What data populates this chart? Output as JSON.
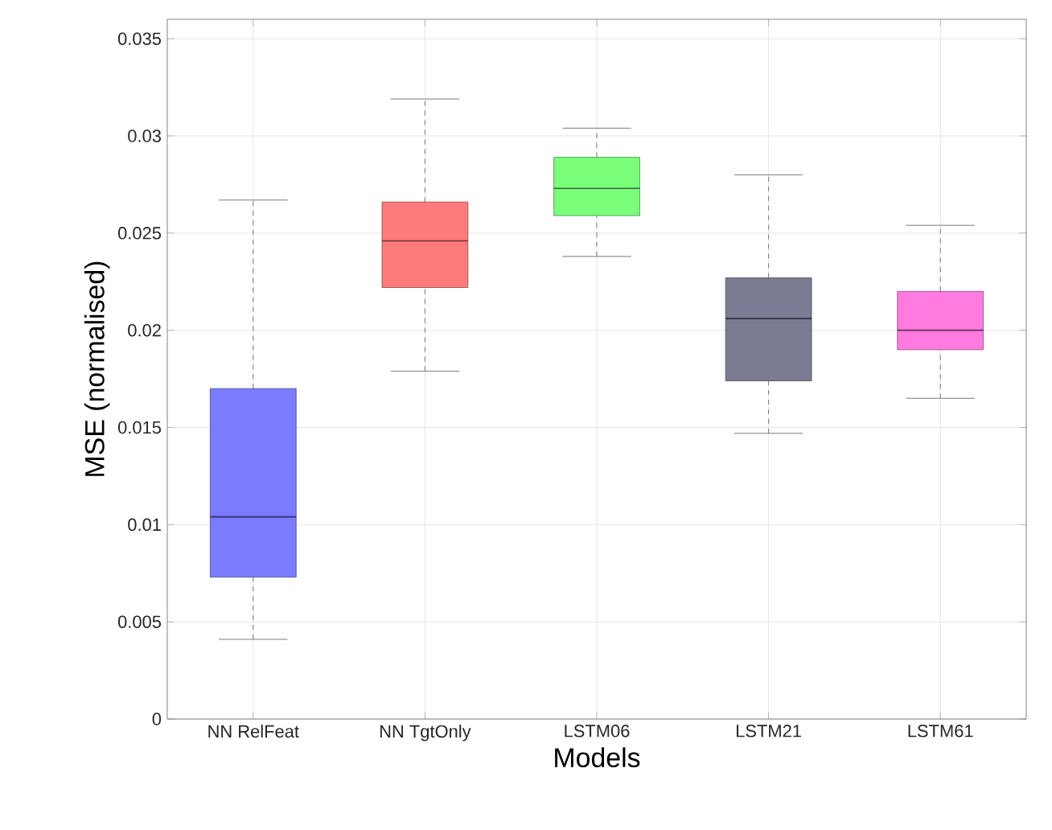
{
  "chart_data": {
    "type": "box",
    "xlabel": "Models",
    "ylabel": "MSE (normalised)",
    "categories": [
      "NN RelFeat",
      "NN TgtOnly",
      "LSTM06",
      "LSTM21",
      "LSTM61"
    ],
    "boxes": [
      {
        "low": 0.0041,
        "q1": 0.0073,
        "median": 0.0104,
        "q3": 0.017,
        "high": 0.0267
      },
      {
        "low": 0.0179,
        "q1": 0.0222,
        "median": 0.0246,
        "q3": 0.0266,
        "high": 0.0319
      },
      {
        "low": 0.0238,
        "q1": 0.0259,
        "median": 0.0273,
        "q3": 0.0289,
        "high": 0.0304
      },
      {
        "low": 0.0147,
        "q1": 0.0174,
        "median": 0.0206,
        "q3": 0.0227,
        "high": 0.028
      },
      {
        "low": 0.0165,
        "q1": 0.019,
        "median": 0.02,
        "q3": 0.022,
        "high": 0.0254
      }
    ],
    "colors": [
      "#7b7bff",
      "#ff7b7b",
      "#7bff7b",
      "#7b7b93",
      "#ff7bdf"
    ],
    "ylim": [
      0,
      0.036
    ],
    "yticks": [
      0,
      0.005,
      0.01,
      0.015,
      0.02,
      0.025,
      0.03,
      0.035
    ],
    "grid": true
  }
}
